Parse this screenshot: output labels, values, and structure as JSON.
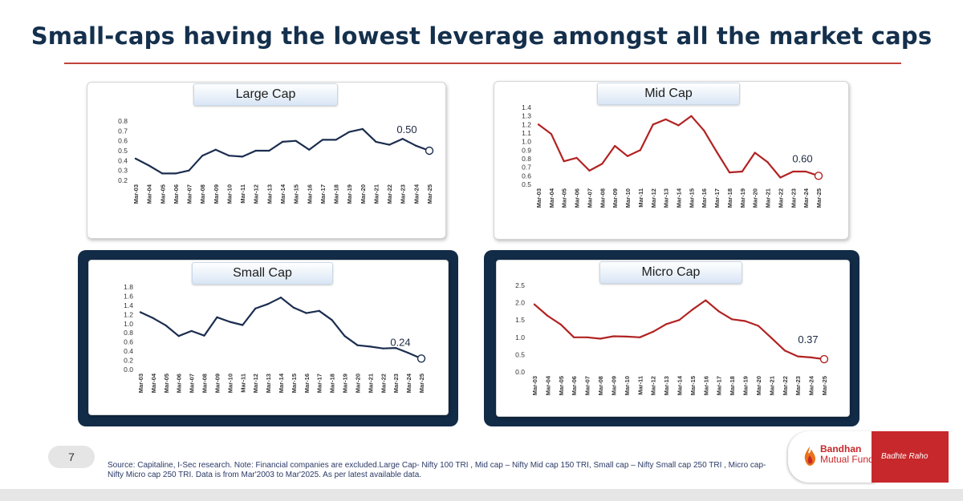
{
  "title": "Small-caps having the lowest leverage amongst all the market caps",
  "page_number": "7",
  "source_note": "Source: Capitaline, I-Sec research. Note: Financial companies are excluded.Large Cap- Nifty 100 TRI , Mid cap – Nifty Mid cap 150 TRI, Small cap – Nifty Small cap 250 TRI , Micro cap- Nifty Micro cap 250 TRI. Data is from Mar'2003 to Mar'2025. As per latest available data.",
  "brand": {
    "name_line1": "Bandhan",
    "name_line2": "Mutual Fund",
    "tagline": "Badhte Raho"
  },
  "colors": {
    "title": "#14304d",
    "navy": "#122b47",
    "red_line": "#b22222",
    "brand_red": "#c7282b"
  },
  "chart_data": [
    {
      "type": "line",
      "title": "Large Cap",
      "x": [
        "Mar-03",
        "Mar-04",
        "Mar-05",
        "Mar-06",
        "Mar-07",
        "Mar-08",
        "Mar-09",
        "Mar-10",
        "Mar-11",
        "Mar-12",
        "Mar-13",
        "Mar-14",
        "Mar-15",
        "Mar-16",
        "Mar-17",
        "Mar-18",
        "Mar-19",
        "Mar-20",
        "Mar-21",
        "Mar-22",
        "Mar-23",
        "Mar-24",
        "Mar-25"
      ],
      "y": [
        0.42,
        0.35,
        0.27,
        0.27,
        0.3,
        0.45,
        0.51,
        0.45,
        0.44,
        0.5,
        0.5,
        0.59,
        0.6,
        0.51,
        0.61,
        0.61,
        0.69,
        0.72,
        0.59,
        0.56,
        0.62,
        0.55,
        0.5
      ],
      "y_ticks": [
        "0.2",
        "0.3",
        "0.4",
        "0.5",
        "0.6",
        "0.7",
        "0.8"
      ],
      "ylim": [
        0.2,
        0.8
      ],
      "end_label": "0.50",
      "line_color": "#1b2d4f"
    },
    {
      "type": "line",
      "title": "Mid Cap",
      "x": [
        "Mar-03",
        "Mar-04",
        "Mar-05",
        "Mar-06",
        "Mar-07",
        "Mar-08",
        "Mar-09",
        "Mar-10",
        "Mar-11",
        "Mar-12",
        "Mar-13",
        "Mar-14",
        "Mar-15",
        "Mar-16",
        "Mar-17",
        "Mar-18",
        "Mar-19",
        "Mar-20",
        "Mar-21",
        "Mar-22",
        "Mar-23",
        "Mar-24",
        "Mar-25"
      ],
      "y": [
        1.2,
        1.09,
        0.77,
        0.81,
        0.66,
        0.74,
        0.95,
        0.83,
        0.9,
        1.2,
        1.26,
        1.19,
        1.3,
        1.13,
        0.88,
        0.64,
        0.65,
        0.87,
        0.76,
        0.58,
        0.65,
        0.65,
        0.6
      ],
      "y_ticks": [
        "0.5",
        "0.6",
        "0.7",
        "0.8",
        "0.9",
        "1.0",
        "1.1",
        "1.2",
        "1.3",
        "1.4"
      ],
      "ylim": [
        0.5,
        1.4
      ],
      "end_label": "0.60",
      "line_color": "#b22222"
    },
    {
      "type": "line",
      "title": "Small Cap",
      "x": [
        "Mar-03",
        "Mar-04",
        "Mar-05",
        "Mar-06",
        "Mar-07",
        "Mar-08",
        "Mar-09",
        "Mar-10",
        "Mar-11",
        "Mar-12",
        "Mar-13",
        "Mar-14",
        "Mar-15",
        "Mar-16",
        "Mar-17",
        "Mar-18",
        "Mar-19",
        "Mar-20",
        "Mar-21",
        "Mar-22",
        "Mar-23",
        "Mar-24",
        "Mar-25"
      ],
      "y": [
        1.25,
        1.12,
        0.96,
        0.73,
        0.84,
        0.74,
        1.14,
        1.04,
        0.97,
        1.33,
        1.43,
        1.57,
        1.35,
        1.23,
        1.28,
        1.08,
        0.73,
        0.53,
        0.5,
        0.46,
        0.47,
        0.36,
        0.24
      ],
      "y_ticks": [
        "0.0",
        "0.2",
        "0.4",
        "0.6",
        "0.8",
        "1.0",
        "1.2",
        "1.4",
        "1.6",
        "1.8"
      ],
      "ylim": [
        0.0,
        1.8
      ],
      "end_label": "0.24",
      "line_color": "#1b2d4f"
    },
    {
      "type": "line",
      "title": "Micro Cap",
      "x": [
        "Mar-03",
        "Mar-04",
        "Mar-05",
        "Mar-06",
        "Mar-07",
        "Mar-08",
        "Mar-09",
        "Mar-10",
        "Mar-11",
        "Mar-12",
        "Mar-13",
        "Mar-14",
        "Mar-15",
        "Mar-16",
        "Mar-17",
        "Mar-18",
        "Mar-19",
        "Mar-20",
        "Mar-21",
        "Mar-22",
        "Mar-23",
        "Mar-24",
        "Mar-25"
      ],
      "y": [
        1.95,
        1.62,
        1.37,
        1.0,
        1.0,
        0.96,
        1.03,
        1.02,
        1.0,
        1.16,
        1.38,
        1.5,
        1.8,
        2.07,
        1.75,
        1.52,
        1.47,
        1.33,
        0.98,
        0.62,
        0.45,
        0.42,
        0.37
      ],
      "y_ticks": [
        "0.0",
        "0.5",
        "1.0",
        "1.5",
        "2.0",
        "2.5"
      ],
      "ylim": [
        0.0,
        2.5
      ],
      "end_label": "0.37",
      "line_color": "#b22222"
    }
  ]
}
